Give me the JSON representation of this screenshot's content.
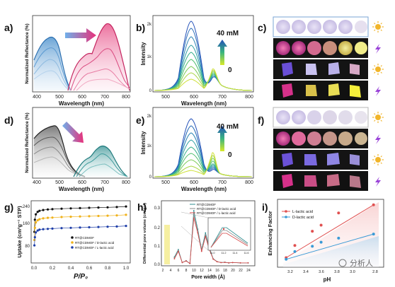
{
  "panel_letters": [
    "a)",
    "b)",
    "c)",
    "d)",
    "e)",
    "f)",
    "g)",
    "h)",
    "i)"
  ],
  "labels": {
    "a_y": "Normalized Reflectance (%)",
    "a_x": "Wavelength (nm)",
    "b_y": "Intensity",
    "b_x": "Wavelength (nm)",
    "b_conc_top": "40 mM",
    "b_conc_bottom": "0",
    "d_y": "Normalized Reflectance (%)",
    "d_x": "Wavelength (nm)",
    "e_y": "Intensity",
    "e_x": "Wavelength (nm)",
    "e_conc_top": "40 mM",
    "e_conc_bottom": "0",
    "g_y": "Uptake (cm³g⁻¹ STP)",
    "g_x": "P/P₀",
    "h_y": "Differential pore volume (cm³g⁻¹)",
    "h_x": "Pore width (Å)",
    "i_y": "Enhancing Factor",
    "i_x": "pH"
  },
  "ticks": {
    "a_x": [
      "400",
      "500",
      "600",
      "700",
      "800"
    ],
    "b_x": [
      "500",
      "600",
      "700",
      "800"
    ],
    "b_y": [
      "0",
      "1k",
      "2k"
    ],
    "e_y": [
      "0",
      "1k",
      "2k"
    ],
    "g_x": [
      "0.0",
      "0.2",
      "0.4",
      "0.6",
      "0.8",
      "1.0"
    ],
    "g_y": [
      "80",
      "160",
      "240"
    ],
    "h_x": [
      "2",
      "4",
      "6",
      "8",
      "10",
      "12",
      "14",
      "16",
      "18",
      "20",
      "22",
      "24"
    ],
    "h_y": [
      "0.0",
      "0.1",
      "0.2",
      "0.3"
    ],
    "h_inset_x": [
      "11.0",
      "11.2",
      "11.4",
      "11.6"
    ],
    "i_x": [
      "3.2",
      "3.4",
      "3.6",
      "3.8",
      "3.0",
      "2.8"
    ]
  },
  "legends": {
    "g": [
      "RT@CDMOF",
      "RT@CDMOF / D-lactic acid",
      "RT@CDMOF / L-lactic acid"
    ],
    "h": [
      "RT@CDMOF",
      "RT@CDMOF / D-lactic acid",
      "RT@CDMOF / L-lactic acid"
    ],
    "i": [
      "L-lactic acid",
      "D-lactic acid"
    ]
  },
  "watermark": "分析人",
  "colors": {
    "a_blue": "#3a86c8",
    "a_pink": "#d6306e",
    "arrow_blue": "#5aa0e0",
    "arrow_pink": "#e8307a",
    "g_black": "#111111",
    "g_yellow": "#f0b21a",
    "g_blue": "#1f3fa8",
    "h_teal": "#2c8d8f",
    "h_gray": "#8a8a8a",
    "h_red": "#d64545",
    "i_red": "#e05050",
    "i_blue": "#3a9ad6"
  },
  "chart_data": [
    {
      "type": "line",
      "panel": "g",
      "xlabel": "P/P₀",
      "ylabel": "Uptake (cm³g⁻¹ STP)",
      "xlim": [
        0,
        1.0
      ],
      "ylim": [
        40,
        260
      ],
      "series": [
        {
          "name": "RT@CDMOF",
          "x": [
            0.005,
            0.01,
            0.02,
            0.04,
            0.06,
            0.1,
            0.15,
            0.2,
            0.3,
            0.4,
            0.5,
            0.6,
            0.7,
            0.8,
            0.9,
            1.0
          ],
          "y": [
            150,
            195,
            215,
            224,
            228,
            231,
            233,
            234,
            236,
            237,
            238,
            239,
            240,
            241,
            242,
            244
          ]
        },
        {
          "name": "RT@CDMOF / D-lactic acid",
          "x": [
            0.005,
            0.01,
            0.02,
            0.04,
            0.06,
            0.1,
            0.15,
            0.2,
            0.3,
            0.4,
            0.5,
            0.6,
            0.7,
            0.8,
            0.9,
            1.0
          ],
          "y": [
            120,
            165,
            185,
            193,
            197,
            200,
            202,
            203,
            205,
            206,
            207,
            208,
            209,
            210,
            211,
            213
          ]
        },
        {
          "name": "RT@CDMOF / L-lactic acid",
          "x": [
            0.005,
            0.01,
            0.02,
            0.04,
            0.06,
            0.1,
            0.15,
            0.2,
            0.3,
            0.4,
            0.5,
            0.6,
            0.7,
            0.8,
            0.9,
            1.0
          ],
          "y": [
            100,
            130,
            148,
            155,
            158,
            160,
            161,
            162,
            164,
            165,
            166,
            167,
            168,
            169,
            170,
            172
          ]
        }
      ]
    },
    {
      "type": "line",
      "panel": "h",
      "xlabel": "Pore width (Å)",
      "ylabel": "Differential pore volume (cm³g⁻¹)",
      "xlim": [
        2,
        25
      ],
      "ylim": [
        0,
        0.32
      ],
      "series": [
        {
          "name": "RT@CDMOF",
          "x": [
            5,
            6,
            7,
            8,
            9,
            10,
            11,
            12,
            13,
            14,
            15,
            16,
            17,
            18,
            19,
            20,
            22,
            24
          ],
          "y": [
            0.04,
            0.08,
            0.01,
            0.02,
            0.005,
            0.29,
            0.19,
            0.08,
            0.17,
            0.09,
            0.03,
            0.015,
            0.01,
            0.012,
            0.008,
            0.01,
            0.008,
            0.008
          ]
        },
        {
          "name": "RT@CDMOF / D-lactic acid",
          "x": [
            5,
            6,
            7,
            8,
            9,
            10,
            11,
            12,
            13,
            14,
            15,
            16,
            17,
            18,
            19,
            20,
            22,
            24
          ],
          "y": [
            0.035,
            0.075,
            0.01,
            0.02,
            0.005,
            0.27,
            0.18,
            0.075,
            0.16,
            0.085,
            0.03,
            0.015,
            0.01,
            0.011,
            0.008,
            0.01,
            0.008,
            0.008
          ]
        },
        {
          "name": "RT@CDMOF / L-lactic acid",
          "x": [
            5,
            6,
            7,
            8,
            9,
            10,
            11,
            12,
            13,
            14,
            15,
            16,
            17,
            18,
            19,
            20,
            22,
            24
          ],
          "y": [
            0.03,
            0.07,
            0.01,
            0.018,
            0.005,
            0.25,
            0.17,
            0.07,
            0.15,
            0.08,
            0.028,
            0.014,
            0.01,
            0.011,
            0.008,
            0.01,
            0.008,
            0.008
          ]
        }
      ]
    },
    {
      "type": "scatter",
      "panel": "i",
      "xlabel": "pH",
      "ylabel": "Enhancing Factor",
      "series": [
        {
          "name": "L-lactic acid",
          "x": [
            3.8,
            3.7,
            3.5,
            3.4,
            3.2,
            2.8
          ],
          "y": [
            4.0,
            7.0,
            10.5,
            12.0,
            15.0,
            17.0
          ]
        },
        {
          "name": "D-lactic acid",
          "x": [
            3.8,
            3.7,
            3.5,
            3.4,
            3.2,
            2.8
          ],
          "y": [
            3.6,
            5.5,
            6.8,
            7.8,
            8.8,
            9.8
          ]
        }
      ]
    }
  ]
}
